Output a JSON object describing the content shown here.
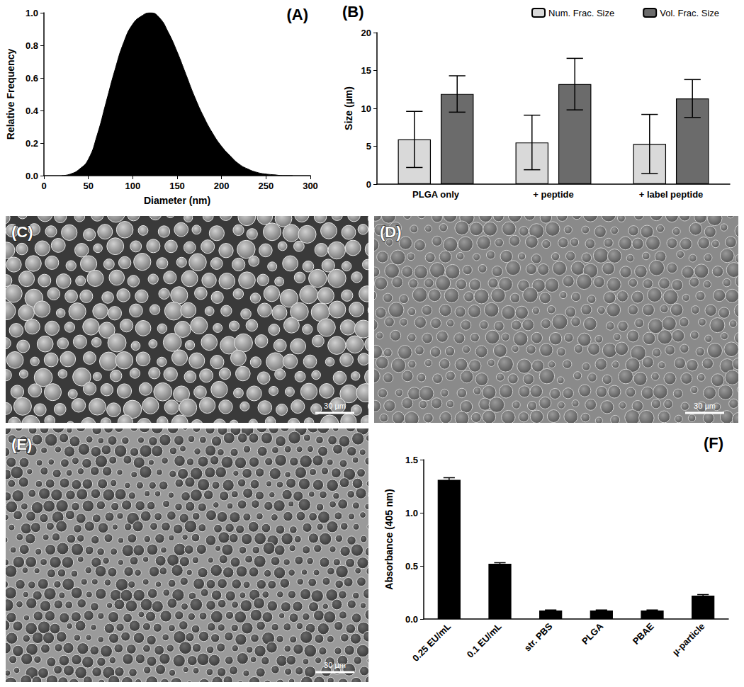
{
  "chart_data": [
    {
      "type": "area",
      "title": "(A)",
      "x_label": "Diameter (nm)",
      "y_label": "Relative Frequency",
      "x": [
        20,
        30,
        40,
        50,
        60,
        70,
        80,
        90,
        100,
        110,
        120,
        130,
        140,
        150,
        160,
        170,
        180,
        190,
        200,
        210,
        220,
        230,
        240,
        250,
        260,
        270,
        280
      ],
      "values": [
        0.0,
        0.01,
        0.04,
        0.1,
        0.25,
        0.45,
        0.65,
        0.82,
        0.93,
        0.98,
        1.0,
        0.97,
        0.88,
        0.76,
        0.62,
        0.48,
        0.36,
        0.26,
        0.18,
        0.12,
        0.07,
        0.04,
        0.02,
        0.01,
        0.005,
        0.0,
        0.0
      ],
      "color": "#000000",
      "xlim": [
        0,
        300
      ],
      "xticks": [
        0,
        50,
        100,
        150,
        200,
        250,
        300
      ],
      "ylim": [
        0,
        1
      ],
      "yticks": [
        {
          "value": 0,
          "label": "0.0"
        },
        0.2,
        0.4,
        0.6,
        0.8,
        {
          "value": 1,
          "label": "1.0"
        }
      ],
      "grid": false
    },
    {
      "type": "bar",
      "title": "(B)",
      "y_label": "Size (µm)",
      "categories": [
        "PLGA only",
        "+ peptide",
        "+ label peptide"
      ],
      "series": [
        {
          "name": "Num. Frac. Size",
          "color": "#d9d9d9",
          "values": [
            5.9,
            5.5,
            5.3
          ],
          "errors": [
            3.7,
            3.6,
            3.9
          ]
        },
        {
          "name": "Vol. Frac. Size",
          "color": "#6b6b6b",
          "values": [
            11.9,
            13.2,
            11.3
          ],
          "errors": [
            2.4,
            3.4,
            2.5
          ]
        }
      ],
      "ylim": [
        0,
        20
      ],
      "yticks": [
        0,
        5,
        10,
        15,
        20
      ],
      "legend": "top",
      "grid": false
    },
    {
      "type": "bar",
      "title": "(F)",
      "y_label": "Absorbance (405 nm)",
      "categories": [
        "0.25 EU/mL",
        "0.1 EU/mL",
        "str. PBS",
        "PLGA",
        "PBAE",
        "µ-particle"
      ],
      "values": [
        1.31,
        0.52,
        0.08,
        0.08,
        0.08,
        0.22
      ],
      "errors": [
        0.02,
        0.01,
        0.005,
        0.005,
        0.005,
        0.01
      ],
      "color": "#000000",
      "ylim": [
        0,
        1.5
      ],
      "yticks": [
        {
          "value": 0,
          "label": "0.0"
        },
        0.5,
        {
          "value": 1,
          "label": "1.0"
        },
        1.5
      ],
      "grid": false
    }
  ],
  "images": [
    {
      "label": "(C)",
      "scale_bar": "30 µm"
    },
    {
      "label": "(D)",
      "scale_bar": "30 µm"
    },
    {
      "label": "(E)",
      "scale_bar": "30 µm"
    }
  ]
}
